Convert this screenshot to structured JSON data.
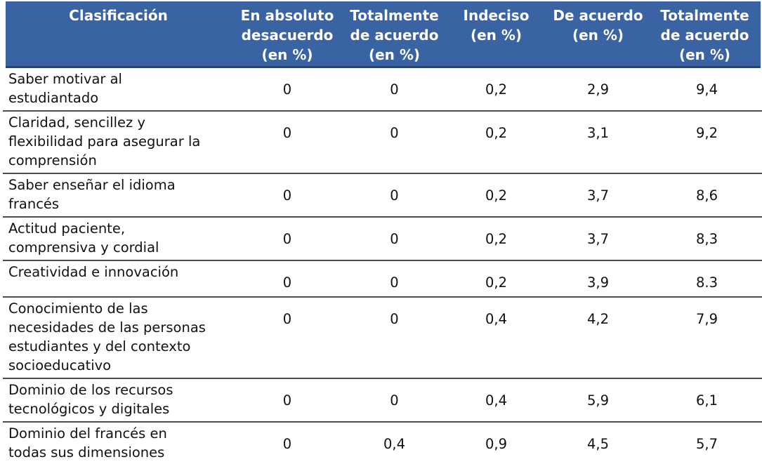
{
  "colors": {
    "header_bg": "#3a63a4",
    "header_text": "#ffffff",
    "header_underline": "#28436f",
    "row_divider": "#4d4d4d",
    "bottom_border": "#3f3f3f",
    "body_text": "#111111"
  },
  "table": {
    "columns": [
      {
        "label": "Clasificación"
      },
      {
        "label": "En absoluto\ndesacuerdo\n(en %)"
      },
      {
        "label": "Totalmente\nde acuerdo\n(en %)"
      },
      {
        "label": "Indeciso\n(en %)"
      },
      {
        "label": "De acuerdo\n(en %)"
      },
      {
        "label": "Totalmente\nde acuerdo\n(en %)"
      }
    ],
    "rows": [
      {
        "label": "Saber motivar al\nestudiantado",
        "values": [
          "0",
          "0",
          "0,2",
          "2,9",
          "9,4"
        ]
      },
      {
        "label": "Claridad, sencillez y\nflexibilidad para asegurar la\ncomprensión",
        "values": [
          "0",
          "0",
          "0,2",
          "3,1",
          "9,2"
        ]
      },
      {
        "label": "Saber enseñar el idioma\nfrancés",
        "values": [
          "0",
          "0",
          "0,2",
          "3,7",
          "8,6"
        ]
      },
      {
        "label": "Actitud paciente,\ncomprensiva y cordial",
        "values": [
          "0",
          "0",
          "0,2",
          "3,7",
          "8,3"
        ]
      },
      {
        "label": "Creatividad e innovación",
        "values": [
          "0",
          "0",
          "0,2",
          "3,9",
          "8.3"
        ]
      },
      {
        "label": "Conocimiento de las\nnecesidades de las personas\nestudiantes y del contexto\nsocioeducativo",
        "values": [
          "0",
          "0",
          "0,4",
          "4,2",
          "7,9"
        ]
      },
      {
        "label": "Dominio de los recursos\ntecnológicos y digitales",
        "values": [
          "0",
          "0",
          "0,4",
          "5,9",
          "6,1"
        ]
      },
      {
        "label": "Dominio del francés en\ntodas sus dimensiones",
        "values": [
          "0",
          "0,4",
          "0,9",
          "4,5",
          "5,7"
        ]
      }
    ]
  }
}
